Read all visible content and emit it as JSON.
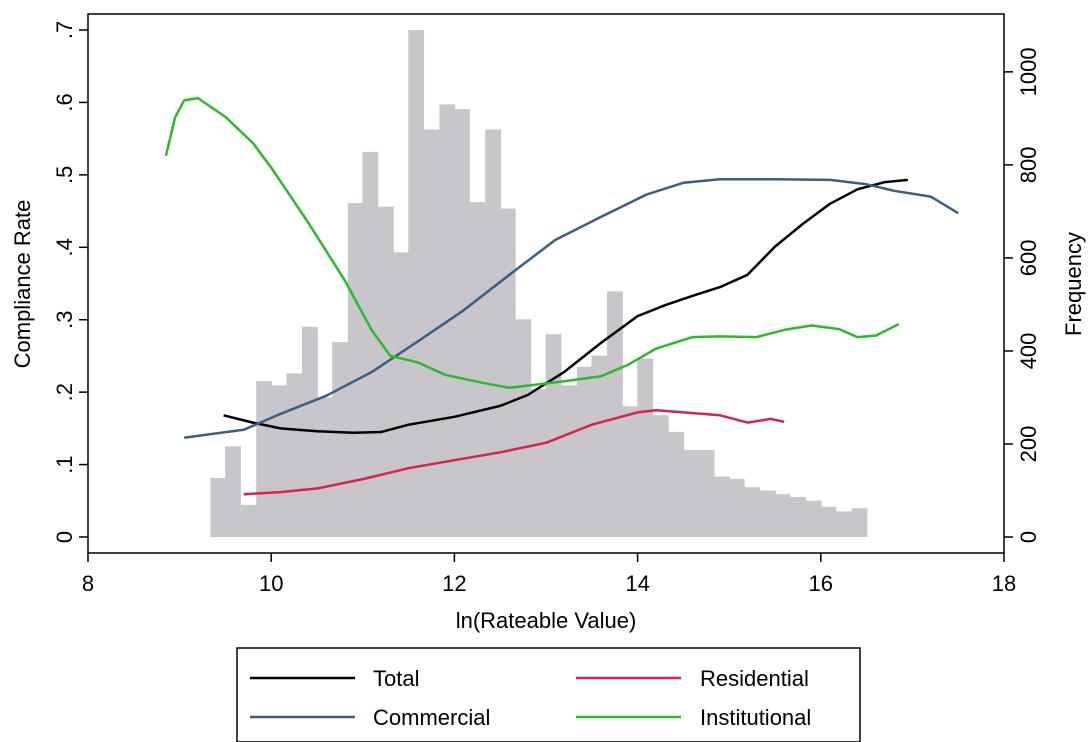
{
  "chart_data": {
    "type": "line",
    "title": "",
    "xlabel": "ln(Rateable Value)",
    "ylabel": "Compliance Rate",
    "y2label": "Frequency",
    "xlim": [
      8,
      18
    ],
    "ylim": [
      0,
      0.7
    ],
    "y2lim": [
      0,
      1090
    ],
    "x_ticks": [
      "8",
      "10",
      "12",
      "14",
      "16",
      "18"
    ],
    "y_ticks": [
      "0",
      ".1",
      ".2",
      ".3",
      ".4",
      ".5",
      ".6",
      ".7"
    ],
    "y2_ticks": [
      "0",
      "200",
      "400",
      "600",
      "800",
      "1000"
    ],
    "histogram": {
      "name": "Frequency",
      "color": "#c8c6cb",
      "bin_width": 0.167,
      "bins": [
        {
          "x": 9.42,
          "y": 127
        },
        {
          "x": 9.58,
          "y": 195
        },
        {
          "x": 9.75,
          "y": 69
        },
        {
          "x": 9.92,
          "y": 335
        },
        {
          "x": 10.08,
          "y": 326
        },
        {
          "x": 10.25,
          "y": 352
        },
        {
          "x": 10.42,
          "y": 452
        },
        {
          "x": 10.58,
          "y": 300
        },
        {
          "x": 10.75,
          "y": 419
        },
        {
          "x": 10.92,
          "y": 718
        },
        {
          "x": 11.08,
          "y": 828
        },
        {
          "x": 11.25,
          "y": 710
        },
        {
          "x": 11.42,
          "y": 612
        },
        {
          "x": 11.58,
          "y": 1090
        },
        {
          "x": 11.75,
          "y": 876
        },
        {
          "x": 11.92,
          "y": 930
        },
        {
          "x": 12.08,
          "y": 920
        },
        {
          "x": 12.25,
          "y": 720
        },
        {
          "x": 12.42,
          "y": 876
        },
        {
          "x": 12.58,
          "y": 706
        },
        {
          "x": 12.75,
          "y": 468
        },
        {
          "x": 12.92,
          "y": 318
        },
        {
          "x": 13.08,
          "y": 436
        },
        {
          "x": 13.25,
          "y": 326
        },
        {
          "x": 13.42,
          "y": 366
        },
        {
          "x": 13.58,
          "y": 390
        },
        {
          "x": 13.75,
          "y": 528
        },
        {
          "x": 13.92,
          "y": 281
        },
        {
          "x": 14.08,
          "y": 384
        },
        {
          "x": 14.25,
          "y": 262
        },
        {
          "x": 14.42,
          "y": 226
        },
        {
          "x": 14.58,
          "y": 187
        },
        {
          "x": 14.75,
          "y": 187
        },
        {
          "x": 14.92,
          "y": 130
        },
        {
          "x": 15.08,
          "y": 125
        },
        {
          "x": 15.25,
          "y": 107
        },
        {
          "x": 15.42,
          "y": 100
        },
        {
          "x": 15.58,
          "y": 92
        },
        {
          "x": 15.75,
          "y": 86
        },
        {
          "x": 15.92,
          "y": 78
        },
        {
          "x": 16.08,
          "y": 65
        },
        {
          "x": 16.25,
          "y": 55
        },
        {
          "x": 16.42,
          "y": 62
        }
      ]
    },
    "series": [
      {
        "name": "Total",
        "color": "#000000",
        "points": [
          [
            9.48,
            0.168
          ],
          [
            9.8,
            0.158
          ],
          [
            10.1,
            0.15
          ],
          [
            10.5,
            0.146
          ],
          [
            10.9,
            0.144
          ],
          [
            11.2,
            0.145
          ],
          [
            11.5,
            0.155
          ],
          [
            12,
            0.166
          ],
          [
            12.5,
            0.181
          ],
          [
            12.8,
            0.196
          ],
          [
            13.2,
            0.228
          ],
          [
            13.6,
            0.268
          ],
          [
            14,
            0.305
          ],
          [
            14.3,
            0.32
          ],
          [
            14.6,
            0.333
          ],
          [
            14.9,
            0.345
          ],
          [
            15.2,
            0.362
          ],
          [
            15.5,
            0.401
          ],
          [
            15.8,
            0.432
          ],
          [
            16.1,
            0.46
          ],
          [
            16.4,
            0.48
          ],
          [
            16.7,
            0.49
          ],
          [
            16.95,
            0.493
          ]
        ]
      },
      {
        "name": "Residential",
        "color": "#d6244d",
        "points": [
          [
            9.7,
            0.059
          ],
          [
            10.1,
            0.062
          ],
          [
            10.5,
            0.067
          ],
          [
            11,
            0.08
          ],
          [
            11.5,
            0.095
          ],
          [
            12,
            0.106
          ],
          [
            12.5,
            0.117
          ],
          [
            13,
            0.13
          ],
          [
            13.5,
            0.155
          ],
          [
            14,
            0.172
          ],
          [
            14.2,
            0.175
          ],
          [
            14.5,
            0.172
          ],
          [
            14.9,
            0.168
          ],
          [
            15.2,
            0.158
          ],
          [
            15.45,
            0.163
          ],
          [
            15.6,
            0.159
          ]
        ]
      },
      {
        "name": "Commercial",
        "color": "#3a5f83",
        "points": [
          [
            9.05,
            0.137
          ],
          [
            9.4,
            0.143
          ],
          [
            9.7,
            0.148
          ],
          [
            10.1,
            0.17
          ],
          [
            10.6,
            0.195
          ],
          [
            11.1,
            0.228
          ],
          [
            11.6,
            0.27
          ],
          [
            12.1,
            0.313
          ],
          [
            12.6,
            0.362
          ],
          [
            13.1,
            0.41
          ],
          [
            13.6,
            0.442
          ],
          [
            14.1,
            0.473
          ],
          [
            14.5,
            0.489
          ],
          [
            14.9,
            0.494
          ],
          [
            15.5,
            0.494
          ],
          [
            16.1,
            0.493
          ],
          [
            16.5,
            0.487
          ],
          [
            16.8,
            0.478
          ],
          [
            17.2,
            0.47
          ],
          [
            17.5,
            0.447
          ]
        ]
      },
      {
        "name": "Institutional",
        "color": "#2cba2c",
        "points": [
          [
            8.85,
            0.526
          ],
          [
            8.95,
            0.579
          ],
          [
            9.05,
            0.603
          ],
          [
            9.2,
            0.606
          ],
          [
            9.5,
            0.58
          ],
          [
            9.8,
            0.544
          ],
          [
            10,
            0.51
          ],
          [
            10.4,
            0.435
          ],
          [
            10.8,
            0.355
          ],
          [
            11.1,
            0.285
          ],
          [
            11.3,
            0.25
          ],
          [
            11.6,
            0.241
          ],
          [
            11.9,
            0.224
          ],
          [
            12.3,
            0.213
          ],
          [
            12.6,
            0.206
          ],
          [
            12.8,
            0.209
          ],
          [
            13.2,
            0.215
          ],
          [
            13.6,
            0.222
          ],
          [
            13.9,
            0.238
          ],
          [
            14.2,
            0.26
          ],
          [
            14.6,
            0.276
          ],
          [
            14.9,
            0.277
          ],
          [
            15.3,
            0.276
          ],
          [
            15.6,
            0.286
          ],
          [
            15.9,
            0.292
          ],
          [
            16.2,
            0.287
          ],
          [
            16.4,
            0.276
          ],
          [
            16.6,
            0.278
          ],
          [
            16.85,
            0.294
          ]
        ]
      }
    ],
    "legend": {
      "placement": "bottom",
      "entries": [
        "Total",
        "Residential",
        "Commercial",
        "Institutional"
      ]
    }
  }
}
